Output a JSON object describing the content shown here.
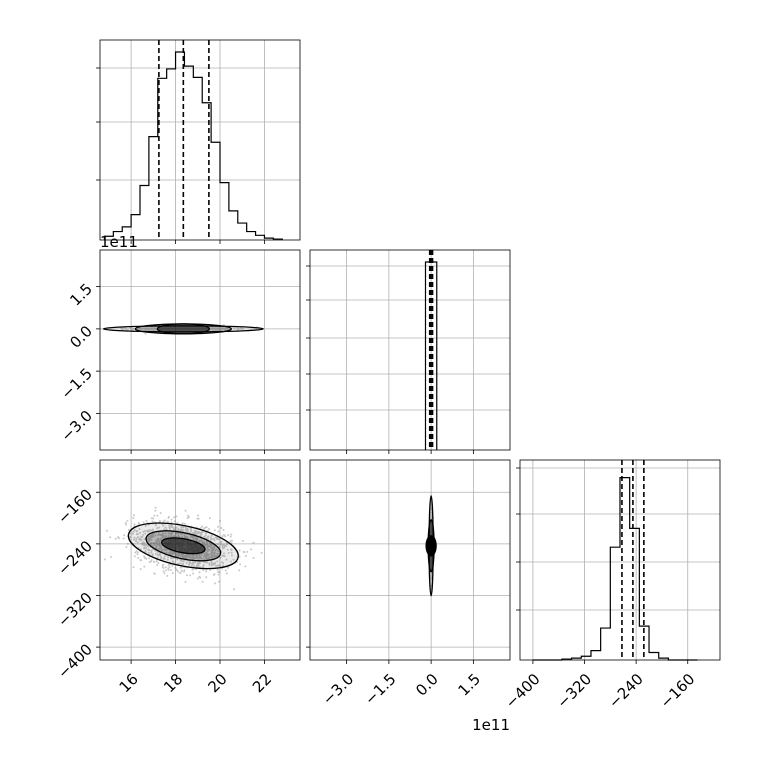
{
  "chart_data": [
    {
      "panel": "hist-param1",
      "type": "histogram",
      "x_ticks": [
        "16",
        "18",
        "20",
        "22"
      ],
      "xlim": [
        14.6,
        23.6
      ],
      "quantiles": [
        17.25,
        18.35,
        19.5
      ],
      "bins_left": [
        14.8,
        15.2,
        15.6,
        16.0,
        16.4,
        16.8,
        17.2,
        17.6,
        18.0,
        18.4,
        18.8,
        19.2,
        19.6,
        20.0,
        20.4,
        20.8,
        21.2,
        21.6,
        22.0,
        22.4
      ],
      "counts": [
        0.02,
        0.045,
        0.07,
        0.135,
        0.29,
        0.55,
        0.86,
        0.91,
        1.0,
        0.925,
        0.865,
        0.73,
        0.52,
        0.305,
        0.155,
        0.09,
        0.045,
        0.025,
        0.01,
        0.005
      ],
      "grid": true
    },
    {
      "panel": "scatter-param1-vs-param2",
      "type": "scatter",
      "x_ticks": [
        "16",
        "18",
        "20",
        "22"
      ],
      "y_ticks": [
        "1.5",
        "0.0",
        "−1.5",
        "−3.0"
      ],
      "y_offset_label": "1e11",
      "xlim": [
        14.6,
        23.6
      ],
      "ylim": [
        -4.3,
        2.8
      ],
      "center": [
        18.35,
        0.0
      ],
      "spread": [
        1.1,
        0.04
      ],
      "n_points": 900,
      "grid": true
    },
    {
      "panel": "hist-param2",
      "type": "histogram",
      "xlim": [
        -4.3,
        2.8
      ],
      "quantiles": [
        -0.05,
        0.0,
        0.05
      ],
      "bins_left": [
        -0.2
      ],
      "bin_width": 0.4,
      "counts": [
        1.0
      ],
      "grid": true
    },
    {
      "panel": "scatter-param1-vs-param3",
      "type": "scatter",
      "x_ticks": [
        "16",
        "18",
        "20",
        "22"
      ],
      "y_ticks": [
        "−160",
        "−240",
        "−320",
        "−400"
      ],
      "xlim": [
        14.6,
        23.6
      ],
      "ylim": [
        -420,
        -110
      ],
      "center": [
        18.35,
        -243
      ],
      "spread": [
        1.1,
        20
      ],
      "correlation": -0.3,
      "n_points": 1200,
      "grid": true
    },
    {
      "panel": "scatter-param2-vs-param3",
      "type": "scatter",
      "x_ticks": [
        "−3.0",
        "−1.5",
        "0.0",
        "1.5"
      ],
      "x_offset_label": "1e11",
      "xlim": [
        -4.3,
        2.8
      ],
      "ylim": [
        -420,
        -110
      ],
      "center": [
        0.0,
        -243
      ],
      "spread": [
        0.02,
        20
      ],
      "n_points": 700,
      "grid": true
    },
    {
      "panel": "hist-param3",
      "type": "histogram",
      "x_ticks": [
        "−400",
        "−320",
        "−240",
        "−160"
      ],
      "xlim": [
        -420,
        -110
      ],
      "quantiles": [
        -262,
        -245,
        -228
      ],
      "bins_left": [
        -400,
        -385,
        -370,
        -355,
        -340,
        -325,
        -310,
        -295,
        -280,
        -265,
        -250,
        -235,
        -220,
        -205,
        -190,
        -175,
        -160
      ],
      "bin_width": 15,
      "counts": [
        0.0,
        0.0,
        0.0,
        0.005,
        0.01,
        0.02,
        0.05,
        0.17,
        0.6,
        0.97,
        0.7,
        0.18,
        0.04,
        0.01,
        0.0,
        0.0,
        0.0
      ],
      "grid": true
    }
  ]
}
